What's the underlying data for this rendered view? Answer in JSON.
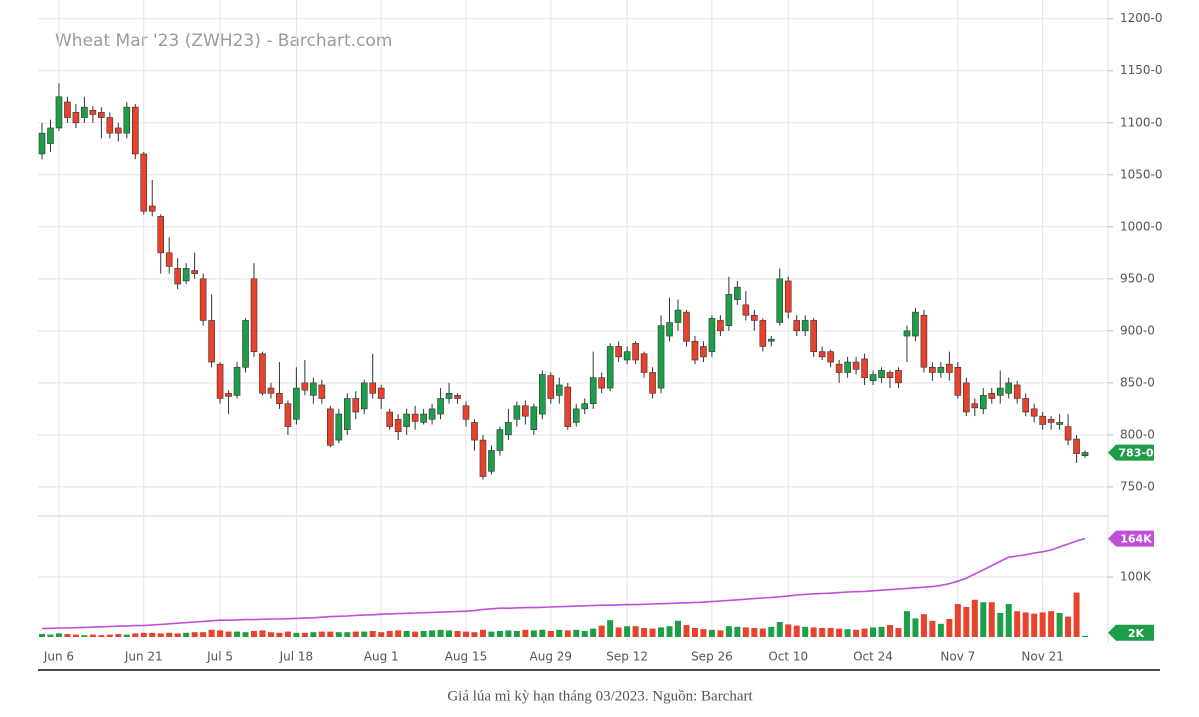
{
  "chart_data": {
    "type": "candlestick",
    "title": "Wheat Mar '23 (ZWH23) - Barchart.com",
    "categories": [
      null,
      null,
      "Jun 6",
      null,
      null,
      null,
      null,
      null,
      null,
      null,
      null,
      null,
      "Jun 21",
      null,
      null,
      null,
      null,
      null,
      null,
      null,
      null,
      "Jul 5",
      null,
      null,
      null,
      null,
      null,
      null,
      null,
      null,
      "Jul 18",
      null,
      null,
      null,
      null,
      null,
      null,
      null,
      null,
      null,
      "Aug 1",
      null,
      null,
      null,
      null,
      null,
      null,
      null,
      null,
      null,
      "Aug 15",
      null,
      null,
      null,
      null,
      null,
      null,
      null,
      null,
      null,
      "Aug 29",
      null,
      null,
      null,
      null,
      null,
      null,
      null,
      null,
      "Sep 12",
      null,
      null,
      null,
      null,
      null,
      null,
      null,
      null,
      null,
      "Sep 26",
      null,
      null,
      null,
      null,
      null,
      null,
      null,
      null,
      "Oct 10",
      null,
      null,
      null,
      null,
      null,
      null,
      null,
      null,
      null,
      "Oct 24",
      null,
      null,
      null,
      null,
      null,
      null,
      null,
      null,
      null,
      "Nov 7",
      null,
      null,
      null,
      null,
      null,
      null,
      null,
      null,
      null,
      "Nov 21",
      null,
      null,
      null,
      null,
      null
    ],
    "open": [
      1070,
      1080,
      1095,
      1120,
      1110,
      1105,
      1112,
      1110,
      1105,
      1095,
      1090,
      1115,
      1070,
      1020,
      1010,
      975,
      960,
      948,
      958,
      950,
      910,
      868,
      840,
      838,
      865,
      950,
      878,
      845,
      840,
      830,
      815,
      850,
      838,
      848,
      825,
      795,
      805,
      835,
      825,
      850,
      845,
      822,
      815,
      808,
      820,
      812,
      815,
      820,
      835,
      838,
      828,
      812,
      795,
      765,
      785,
      800,
      815,
      828,
      805,
      820,
      857,
      838,
      846,
      812,
      825,
      830,
      855,
      845,
      885,
      872,
      888,
      878,
      860,
      845,
      895,
      908,
      918,
      890,
      885,
      880,
      910,
      905,
      930,
      925,
      915,
      910,
      890,
      908,
      948,
      910,
      900,
      910,
      880,
      880,
      868,
      860,
      870,
      873,
      852,
      855,
      860,
      862,
      895,
      895,
      915,
      865,
      860,
      868,
      865,
      850,
      830,
      825,
      840,
      838,
      840,
      848,
      835,
      825,
      818,
      815,
      810,
      808,
      796,
      780
    ],
    "high": [
      1100,
      1103,
      1138,
      1125,
      1118,
      1125,
      1116,
      1115,
      1110,
      1100,
      1120,
      1118,
      1072,
      1045,
      1012,
      990,
      970,
      965,
      975,
      955,
      935,
      870,
      843,
      870,
      912,
      965,
      880,
      850,
      870,
      833,
      865,
      872,
      855,
      853,
      828,
      825,
      840,
      842,
      853,
      878,
      848,
      825,
      820,
      825,
      828,
      825,
      830,
      845,
      850,
      840,
      832,
      815,
      800,
      790,
      808,
      825,
      832,
      833,
      830,
      862,
      860,
      855,
      850,
      830,
      835,
      880,
      860,
      888,
      890,
      885,
      890,
      880,
      865,
      915,
      932,
      930,
      920,
      895,
      890,
      915,
      915,
      952,
      948,
      938,
      920,
      912,
      895,
      960,
      952,
      915,
      915,
      912,
      885,
      882,
      872,
      875,
      875,
      878,
      862,
      865,
      862,
      865,
      905,
      922,
      920,
      870,
      870,
      880,
      870,
      855,
      835,
      845,
      845,
      862,
      855,
      852,
      840,
      830,
      822,
      818,
      820,
      820,
      800,
      785
    ],
    "low": [
      1065,
      1072,
      1092,
      1100,
      1095,
      1100,
      1100,
      1085,
      1085,
      1082,
      1085,
      1065,
      1012,
      1010,
      955,
      955,
      940,
      945,
      950,
      905,
      865,
      830,
      820,
      835,
      860,
      875,
      838,
      835,
      825,
      800,
      810,
      838,
      830,
      830,
      788,
      792,
      800,
      815,
      820,
      835,
      825,
      805,
      795,
      800,
      805,
      810,
      810,
      815,
      830,
      830,
      808,
      785,
      757,
      762,
      780,
      795,
      808,
      810,
      800,
      815,
      830,
      830,
      805,
      808,
      820,
      825,
      840,
      842,
      870,
      868,
      868,
      855,
      835,
      840,
      890,
      900,
      885,
      868,
      870,
      875,
      895,
      900,
      925,
      910,
      900,
      880,
      885,
      905,
      912,
      895,
      895,
      875,
      872,
      865,
      850,
      855,
      858,
      848,
      848,
      850,
      845,
      845,
      870,
      890,
      860,
      852,
      855,
      852,
      835,
      818,
      818,
      820,
      830,
      830,
      835,
      830,
      818,
      812,
      805,
      805,
      805,
      790,
      773,
      778
    ],
    "close": [
      1090,
      1095,
      1125,
      1105,
      1100,
      1115,
      1108,
      1105,
      1090,
      1090,
      1115,
      1070,
      1015,
      1015,
      975,
      962,
      945,
      960,
      955,
      910,
      870,
      835,
      837,
      865,
      910,
      880,
      840,
      840,
      830,
      808,
      845,
      843,
      850,
      835,
      790,
      820,
      835,
      822,
      850,
      840,
      835,
      808,
      803,
      820,
      813,
      820,
      825,
      835,
      840,
      835,
      815,
      795,
      760,
      785,
      805,
      812,
      828,
      818,
      827,
      858,
      835,
      848,
      808,
      825,
      830,
      855,
      845,
      885,
      875,
      880,
      872,
      860,
      840,
      905,
      908,
      920,
      890,
      872,
      875,
      912,
      900,
      935,
      942,
      915,
      910,
      885,
      892,
      950,
      918,
      900,
      910,
      880,
      875,
      870,
      860,
      870,
      863,
      855,
      858,
      862,
      855,
      850,
      900,
      918,
      865,
      860,
      865,
      860,
      838,
      822,
      826,
      838,
      835,
      845,
      850,
      835,
      822,
      818,
      810,
      812,
      812,
      795,
      782,
      783
    ],
    "up_color": "#1e9e48",
    "down_color": "#e8412c",
    "ylim": [
      723,
      1218
    ],
    "yticks": [
      {
        "value": 750,
        "label": "750-0"
      },
      {
        "value": 800,
        "label": "800-0"
      },
      {
        "value": 850,
        "label": "850-0"
      },
      {
        "value": 900,
        "label": "900-0"
      },
      {
        "value": 950,
        "label": "950-0"
      },
      {
        "value": 1000,
        "label": "1000-0"
      },
      {
        "value": 1050,
        "label": "1050-0"
      },
      {
        "value": 1100,
        "label": "1100-0"
      },
      {
        "value": 1150,
        "label": "1150-0"
      },
      {
        "value": 1200,
        "label": "1200-0"
      }
    ],
    "last_label": "783-0",
    "grid": true,
    "volume": {
      "values": [
        5000,
        4000,
        6000,
        5000,
        4000,
        3000,
        4000,
        3000,
        4000,
        5000,
        4000,
        6000,
        7000,
        7000,
        6000,
        7000,
        6000,
        7000,
        8000,
        8000,
        12000,
        11000,
        9000,
        9000,
        8000,
        10000,
        11000,
        8000,
        7000,
        9000,
        7000,
        7000,
        8000,
        9000,
        9000,
        8000,
        8000,
        9000,
        9000,
        10000,
        8000,
        10000,
        11000,
        10000,
        9000,
        10000,
        11000,
        12000,
        11000,
        10000,
        9000,
        8000,
        12000,
        9000,
        10000,
        11000,
        10000,
        12000,
        11000,
        12000,
        10000,
        12000,
        11000,
        12000,
        10000,
        14000,
        19000,
        28000,
        16000,
        18000,
        18000,
        15000,
        14000,
        16000,
        18000,
        27000,
        20000,
        15000,
        13000,
        12000,
        11000,
        18000,
        17000,
        16000,
        15000,
        14000,
        17000,
        25000,
        21000,
        19000,
        17000,
        16000,
        15000,
        15000,
        14000,
        13000,
        12000,
        14000,
        16000,
        17000,
        20000,
        15000,
        43000,
        31000,
        38000,
        27000,
        22000,
        30000,
        55000,
        50000,
        62000,
        58000,
        58000,
        40000,
        55000,
        43000,
        41000,
        39000,
        41000,
        43000,
        40000,
        34000,
        74000,
        2000
      ],
      "y2lim": [
        0,
        200000
      ],
      "y2ticks": [
        {
          "value": 100000,
          "label": "100K"
        }
      ],
      "last_label": "2K"
    },
    "open_interest": {
      "color": "#c04fd8",
      "values": [
        14000,
        14500,
        15000,
        15000,
        15500,
        16000,
        16500,
        17000,
        17500,
        18000,
        18500,
        19000,
        19000,
        20000,
        21000,
        22000,
        23000,
        24000,
        25000,
        26000,
        27000,
        28000,
        28000,
        28500,
        29000,
        29000,
        29500,
        30000,
        30000,
        30500,
        31000,
        31500,
        32000,
        33000,
        34000,
        34500,
        35000,
        36000,
        36500,
        37000,
        38000,
        38500,
        39000,
        39500,
        40000,
        40500,
        41000,
        41500,
        42000,
        42500,
        43000,
        44000,
        46000,
        47000,
        48000,
        48000,
        48500,
        49000,
        49000,
        49500,
        50000,
        50500,
        51000,
        51500,
        52000,
        52500,
        53000,
        53000,
        53500,
        54000,
        54000,
        54500,
        55000,
        55500,
        56000,
        56500,
        57000,
        57500,
        58000,
        59000,
        60000,
        61000,
        62000,
        63000,
        64000,
        65000,
        66000,
        67000,
        68500,
        70000,
        71000,
        72000,
        72500,
        73000,
        74000,
        75000,
        75500,
        76000,
        77000,
        78000,
        79000,
        80000,
        81000,
        82000,
        83000,
        84000,
        86000,
        89000,
        93000,
        98000,
        105000,
        112000,
        119000,
        126000,
        133000,
        135000,
        137000,
        140000,
        142000,
        145000,
        150000,
        155000,
        160000,
        164000
      ],
      "last_label": "164K"
    }
  },
  "caption": "Giá lúa mì kỳ hạn tháng 03/2023. Nguồn: Barchart"
}
